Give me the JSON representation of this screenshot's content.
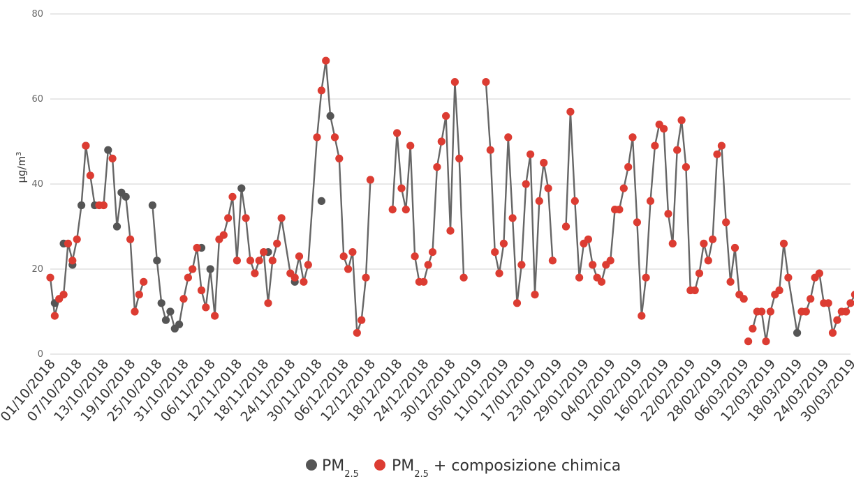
{
  "chart_data": {
    "type": "line",
    "ylabel": "µg/m³",
    "ylabel_base": "µg/m",
    "ylabel_sup": "3",
    "ylim": [
      0,
      80
    ],
    "yticks": [
      "0",
      "20",
      "40",
      "60",
      "80"
    ],
    "grid": true,
    "legend_position": "bottom-center",
    "line_color": "#666666",
    "xtick_labels": [
      "01/10/2018",
      "07/10/2018",
      "13/10/2018",
      "19/10/2018",
      "25/10/2018",
      "31/10/2018",
      "06/11/2018",
      "12/11/2018",
      "18/11/2018",
      "24/11/2018",
      "30/11/2018",
      "06/12/2018",
      "12/12/2018",
      "18/12/2018",
      "24/12/2018",
      "30/12/2018",
      "05/01/2019",
      "11/01/2019",
      "17/01/2019",
      "23/01/2019",
      "29/01/2019",
      "04/02/2019",
      "10/02/2019",
      "16/02/2019",
      "22/02/2019",
      "28/02/2019",
      "06/03/2019",
      "12/03/2019",
      "18/03/2019",
      "24/03/2019",
      "30/03/2019"
    ],
    "x_start": "01/10/2018",
    "x_end": "30/03/2019",
    "series": [
      {
        "name": "PM2.5",
        "label_main": "PM",
        "label_sub": "2.5",
        "label_suffix": "",
        "color": "#555555",
        "points": [
          [
            "02/10/2018",
            12
          ],
          [
            "04/10/2018",
            26
          ],
          [
            "06/10/2018",
            21
          ],
          [
            "08/10/2018",
            35
          ],
          [
            "09/10/2018",
            49
          ],
          [
            "11/10/2018",
            35
          ],
          [
            "14/10/2018",
            48
          ],
          [
            "16/10/2018",
            30
          ],
          [
            "17/10/2018",
            38
          ],
          [
            "18/10/2018",
            37
          ],
          [
            "24/10/2018",
            35
          ],
          [
            "25/10/2018",
            22
          ],
          [
            "26/10/2018",
            12
          ],
          [
            "27/10/2018",
            8
          ],
          [
            "28/10/2018",
            10
          ],
          [
            "29/10/2018",
            6
          ],
          [
            "30/10/2018",
            7
          ],
          [
            "04/11/2018",
            25
          ],
          [
            "06/11/2018",
            20
          ],
          [
            "13/11/2018",
            39
          ],
          [
            "19/11/2018",
            24
          ],
          [
            "25/11/2018",
            17
          ],
          [
            "01/12/2018",
            36
          ],
          [
            "03/12/2018",
            56
          ],
          [
            "18/03/2019",
            5
          ]
        ]
      },
      {
        "name": "PM2.5 + composizione chimica",
        "label_main": "PM",
        "label_sub": "2.5",
        "label_suffix": " + composizione chimica",
        "color": "#dc3c32",
        "points": [
          [
            "01/10/2018",
            18
          ],
          [
            "02/10/2018",
            9
          ],
          [
            "03/10/2018",
            13
          ],
          [
            "04/10/2018",
            14
          ],
          [
            "05/10/2018",
            26
          ],
          [
            "06/10/2018",
            22
          ],
          [
            "07/10/2018",
            27
          ],
          [
            "09/10/2018",
            49
          ],
          [
            "10/10/2018",
            42
          ],
          [
            "12/10/2018",
            35
          ],
          [
            "13/10/2018",
            35
          ],
          [
            "15/10/2018",
            46
          ],
          [
            "19/10/2018",
            27
          ],
          [
            "20/10/2018",
            10
          ],
          [
            "21/10/2018",
            14
          ],
          [
            "22/10/2018",
            17
          ],
          [
            "31/10/2018",
            13
          ],
          [
            "01/11/2018",
            18
          ],
          [
            "02/11/2018",
            20
          ],
          [
            "03/11/2018",
            25
          ],
          [
            "04/11/2018",
            15
          ],
          [
            "05/11/2018",
            11
          ],
          [
            "07/11/2018",
            9
          ],
          [
            "08/11/2018",
            27
          ],
          [
            "09/11/2018",
            28
          ],
          [
            "10/11/2018",
            32
          ],
          [
            "11/11/2018",
            37
          ],
          [
            "12/11/2018",
            22
          ],
          [
            "14/11/2018",
            32
          ],
          [
            "15/11/2018",
            22
          ],
          [
            "16/11/2018",
            19
          ],
          [
            "17/11/2018",
            22
          ],
          [
            "18/11/2018",
            24
          ],
          [
            "19/11/2018",
            12
          ],
          [
            "20/11/2018",
            22
          ],
          [
            "21/11/2018",
            26
          ],
          [
            "22/11/2018",
            32
          ],
          [
            "24/11/2018",
            19
          ],
          [
            "25/11/2018",
            18
          ],
          [
            "26/11/2018",
            23
          ],
          [
            "27/11/2018",
            17
          ],
          [
            "28/11/2018",
            21
          ],
          [
            "30/11/2018",
            51
          ],
          [
            "01/12/2018",
            62
          ],
          [
            "02/12/2018",
            69
          ],
          [
            "04/12/2018",
            51
          ],
          [
            "05/12/2018",
            46
          ],
          [
            "06/12/2018",
            23
          ],
          [
            "07/12/2018",
            20
          ],
          [
            "08/12/2018",
            24
          ],
          [
            "09/12/2018",
            5
          ],
          [
            "10/12/2018",
            8
          ],
          [
            "11/12/2018",
            18
          ],
          [
            "12/12/2018",
            41
          ],
          [
            "17/12/2018",
            34
          ],
          [
            "18/12/2018",
            52
          ],
          [
            "19/12/2018",
            39
          ],
          [
            "20/12/2018",
            34
          ],
          [
            "21/12/2018",
            49
          ],
          [
            "22/12/2018",
            23
          ],
          [
            "23/12/2018",
            17
          ],
          [
            "24/12/2018",
            17
          ],
          [
            "25/12/2018",
            21
          ],
          [
            "26/12/2018",
            24
          ],
          [
            "27/12/2018",
            44
          ],
          [
            "28/12/2018",
            50
          ],
          [
            "29/12/2018",
            56
          ],
          [
            "30/12/2018",
            29
          ],
          [
            "31/12/2018",
            64
          ],
          [
            "01/01/2019",
            46
          ],
          [
            "02/01/2019",
            18
          ],
          [
            "07/01/2019",
            64
          ],
          [
            "08/01/2019",
            48
          ],
          [
            "09/01/2019",
            24
          ],
          [
            "10/01/2019",
            19
          ],
          [
            "11/01/2019",
            26
          ],
          [
            "12/01/2019",
            51
          ],
          [
            "13/01/2019",
            32
          ],
          [
            "14/01/2019",
            12
          ],
          [
            "15/01/2019",
            21
          ],
          [
            "16/01/2019",
            40
          ],
          [
            "17/01/2019",
            47
          ],
          [
            "18/01/2019",
            14
          ],
          [
            "19/01/2019",
            36
          ],
          [
            "20/01/2019",
            45
          ],
          [
            "21/01/2019",
            39
          ],
          [
            "22/01/2019",
            22
          ],
          [
            "25/01/2019",
            30
          ],
          [
            "26/01/2019",
            57
          ],
          [
            "27/01/2019",
            36
          ],
          [
            "28/01/2019",
            18
          ],
          [
            "29/01/2019",
            26
          ],
          [
            "30/01/2019",
            27
          ],
          [
            "31/01/2019",
            21
          ],
          [
            "01/02/2019",
            18
          ],
          [
            "02/02/2019",
            17
          ],
          [
            "03/02/2019",
            21
          ],
          [
            "04/02/2019",
            22
          ],
          [
            "05/02/2019",
            34
          ],
          [
            "06/02/2019",
            34
          ],
          [
            "07/02/2019",
            39
          ],
          [
            "08/02/2019",
            44
          ],
          [
            "09/02/2019",
            51
          ],
          [
            "10/02/2019",
            31
          ],
          [
            "11/02/2019",
            9
          ],
          [
            "12/02/2019",
            18
          ],
          [
            "13/02/2019",
            36
          ],
          [
            "14/02/2019",
            49
          ],
          [
            "15/02/2019",
            54
          ],
          [
            "16/02/2019",
            53
          ],
          [
            "17/02/2019",
            33
          ],
          [
            "18/02/2019",
            26
          ],
          [
            "19/02/2019",
            48
          ],
          [
            "20/02/2019",
            55
          ],
          [
            "21/02/2019",
            44
          ],
          [
            "22/02/2019",
            15
          ],
          [
            "23/02/2019",
            15
          ],
          [
            "24/02/2019",
            19
          ],
          [
            "25/02/2019",
            26
          ],
          [
            "26/02/2019",
            22
          ],
          [
            "27/02/2019",
            27
          ],
          [
            "28/02/2019",
            47
          ],
          [
            "01/03/2019",
            49
          ],
          [
            "02/03/2019",
            31
          ],
          [
            "03/03/2019",
            17
          ],
          [
            "04/03/2019",
            25
          ],
          [
            "05/03/2019",
            14
          ],
          [
            "06/03/2019",
            13
          ],
          [
            "07/03/2019",
            3
          ],
          [
            "08/03/2019",
            6
          ],
          [
            "09/03/2019",
            10
          ],
          [
            "10/03/2019",
            10
          ],
          [
            "11/03/2019",
            3
          ],
          [
            "12/03/2019",
            10
          ],
          [
            "13/03/2019",
            14
          ],
          [
            "14/03/2019",
            15
          ],
          [
            "15/03/2019",
            26
          ],
          [
            "16/03/2019",
            18
          ],
          [
            "19/03/2019",
            10
          ],
          [
            "20/03/2019",
            10
          ],
          [
            "21/03/2019",
            13
          ],
          [
            "22/03/2019",
            18
          ],
          [
            "23/03/2019",
            19
          ],
          [
            "24/03/2019",
            12
          ],
          [
            "25/03/2019",
            12
          ],
          [
            "26/03/2019",
            5
          ],
          [
            "27/03/2019",
            8
          ],
          [
            "28/03/2019",
            10
          ],
          [
            "29/03/2019",
            10
          ],
          [
            "30/03/2019",
            12
          ],
          [
            "31/03/2019",
            14
          ]
        ]
      }
    ],
    "line_segments": [
      [
        "01/10/2018",
        "22/10/2018"
      ],
      [
        "24/10/2018",
        "12/12/2018"
      ],
      [
        "17/12/2018",
        "02/01/2019"
      ],
      [
        "07/01/2019",
        "22/01/2019"
      ],
      [
        "25/01/2019",
        "06/03/2019"
      ],
      [
        "08/03/2019",
        "31/03/2019"
      ]
    ]
  }
}
